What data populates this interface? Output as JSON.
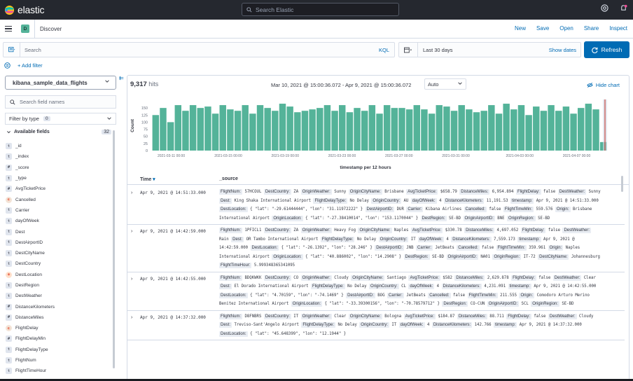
{
  "topbar": {
    "brand": "elastic",
    "search_placeholder": "Search Elastic"
  },
  "navbar": {
    "space_initial": "D",
    "breadcrumb": "Discover",
    "links": [
      "New",
      "Save",
      "Open",
      "Share",
      "Inspect"
    ]
  },
  "querybar": {
    "search_placeholder": "Search",
    "kql": "KQL",
    "date_range": "Last 30 days",
    "show_dates": "Show dates",
    "refresh": "Refresh"
  },
  "filter": {
    "add_filter": "+ Add filter"
  },
  "sidebar": {
    "index_pattern": "kibana_sample_data_flights",
    "search_placeholder": "Search field names",
    "filter_by_type": "Filter by type",
    "filter_count": "0",
    "available_fields": "Available fields",
    "available_count": "32",
    "fields": [
      {
        "type": "t",
        "name": "_id"
      },
      {
        "type": "t",
        "name": "_index"
      },
      {
        "type": "#",
        "name": "_score"
      },
      {
        "type": "t",
        "name": "_type"
      },
      {
        "type": "#",
        "name": "AvgTicketPrice"
      },
      {
        "type": "bool",
        "name": "Cancelled"
      },
      {
        "type": "t",
        "name": "Carrier"
      },
      {
        "type": "t",
        "name": "dayOfWeek"
      },
      {
        "type": "t",
        "name": "Dest"
      },
      {
        "type": "t",
        "name": "DestAirportID"
      },
      {
        "type": "t",
        "name": "DestCityName"
      },
      {
        "type": "t",
        "name": "DestCountry"
      },
      {
        "type": "geo",
        "name": "DestLocation"
      },
      {
        "type": "t",
        "name": "DestRegion"
      },
      {
        "type": "t",
        "name": "DestWeather"
      },
      {
        "type": "#",
        "name": "DistanceKilometers"
      },
      {
        "type": "#",
        "name": "DistanceMiles"
      },
      {
        "type": "bool",
        "name": "FlightDelay"
      },
      {
        "type": "#",
        "name": "FlightDelayMin"
      },
      {
        "type": "t",
        "name": "FlightDelayType"
      },
      {
        "type": "t",
        "name": "FlightNum"
      },
      {
        "type": "t",
        "name": "FlightTimeHour"
      }
    ]
  },
  "main": {
    "hits_count": "9,317",
    "hits_label": "hits",
    "date_range": "Mar 10, 2021 @ 15:00:36.072 - Apr 9, 2021 @ 15:00:36.072",
    "interval": "Auto",
    "hide_chart": "Hide chart",
    "col_time": "Time",
    "col_source": "_source"
  },
  "chart_data": {
    "type": "bar",
    "xlabel": "timestamp per 12 hours",
    "ylabel": "Count",
    "ylim": [
      0,
      175
    ],
    "yticks": [
      0,
      25,
      50,
      75,
      100,
      125,
      150
    ],
    "xtick_labels": [
      "2021-03-11 00:00",
      "2021-03-15 00:00",
      "2021-03-19 00:00",
      "2021-03-23 00:00",
      "2021-03-27 00:00",
      "2021-03-31 00:00",
      "2021-04-03 00:00",
      "2021-04-07 00:00"
    ],
    "values": [
      125,
      150,
      100,
      160,
      140,
      160,
      150,
      155,
      130,
      160,
      145,
      140,
      160,
      130,
      160,
      150,
      140,
      165,
      155,
      135,
      140,
      145,
      150,
      160,
      140,
      160,
      135,
      150,
      140,
      160,
      130,
      160,
      150,
      150,
      145,
      160,
      145,
      130,
      160,
      155,
      140,
      160,
      145,
      135,
      140,
      160,
      130,
      165,
      145,
      160,
      125,
      155,
      140,
      160,
      140,
      155,
      130,
      150,
      165,
      145,
      30
    ]
  },
  "rows": [
    {
      "time": "Apr 9, 2021 @ 14:51:33.000",
      "pairs": [
        [
          "FlightNum:",
          "57HCOUL"
        ],
        [
          "DestCountry:",
          "ZA"
        ],
        [
          "OriginWeather:",
          "Sunny"
        ],
        [
          "OriginCityName:",
          "Brisbane"
        ],
        [
          "AvgTicketPrice:",
          "$658.79"
        ],
        [
          "DistanceMiles:",
          "6,954.894"
        ],
        [
          "FlightDelay:",
          "false"
        ],
        [
          "DestWeather:",
          "Sunny"
        ],
        [
          "Dest:",
          "King Shaka International Airport"
        ],
        [
          "FlightDelayType:",
          "No Delay"
        ],
        [
          "OriginCountry:",
          "AU"
        ],
        [
          "dayOfWeek:",
          "4"
        ],
        [
          "DistanceKilometers:",
          "11,191.53"
        ],
        [
          "timestamp:",
          "Apr 9, 2021 @ 14:51:33.000"
        ],
        [
          "DestLocation:",
          "{ \"lat\": \"-29.61444444\", \"lon\": \"31.11972222\" }"
        ],
        [
          "DestAirportID:",
          "DUR"
        ],
        [
          "Carrier:",
          "Kibana Airlines"
        ],
        [
          "Cancelled:",
          "false"
        ],
        [
          "FlightTimeMin:",
          "559.576"
        ],
        [
          "Origin:",
          "Brisbane International Airport"
        ],
        [
          "OriginLocation:",
          "{ \"lat\": \"-27.38410014\", \"lon\": \"153.1170044\" }"
        ],
        [
          "DestRegion:",
          "SE-BD"
        ],
        [
          "OriginAirportID:",
          "BNE"
        ],
        [
          "OriginRegion:",
          "SE-BD"
        ]
      ]
    },
    {
      "time": "Apr 9, 2021 @ 14:42:59.000",
      "pairs": [
        [
          "FlightNum:",
          "1PFICL1"
        ],
        [
          "DestCountry:",
          "ZA"
        ],
        [
          "OriginWeather:",
          "Heavy Fog"
        ],
        [
          "OriginCityName:",
          "Naples"
        ],
        [
          "AvgTicketPrice:",
          "$330.78"
        ],
        [
          "DistanceMiles:",
          "4,697.052"
        ],
        [
          "FlightDelay:",
          "false"
        ],
        [
          "DestWeather:",
          "Rain"
        ],
        [
          "Dest:",
          "OR Tambo International Airport"
        ],
        [
          "FlightDelayType:",
          "No Delay"
        ],
        [
          "OriginCountry:",
          "IT"
        ],
        [
          "dayOfWeek:",
          "4"
        ],
        [
          "DistanceKilometers:",
          "7,559.173"
        ],
        [
          "timestamp:",
          "Apr 9, 2021 @ 14:42:59.000"
        ],
        [
          "DestLocation:",
          "{ \"lat\": \"-26.1392\", \"lon\": \"28.246\" }"
        ],
        [
          "DestAirportID:",
          "JNB"
        ],
        [
          "Carrier:",
          "JetBeats"
        ],
        [
          "Cancelled:",
          "false"
        ],
        [
          "FlightTimeMin:",
          "359.961"
        ],
        [
          "Origin:",
          "Naples International Airport"
        ],
        [
          "OriginLocation:",
          "{ \"lat\": \"40.886002\", \"lon\": \"14.2908\" }"
        ],
        [
          "DestRegion:",
          "SE-BD"
        ],
        [
          "OriginAirportID:",
          "NA01"
        ],
        [
          "OriginRegion:",
          "IT-72"
        ],
        [
          "DestCityName:",
          "Johannesburg"
        ],
        [
          "FlightTimeHour:",
          "5.999348365341095"
        ]
      ]
    },
    {
      "time": "Apr 9, 2021 @ 14:42:55.000",
      "pairs": [
        [
          "FlightNum:",
          "BDQKWKK"
        ],
        [
          "DestCountry:",
          "CO"
        ],
        [
          "OriginWeather:",
          "Cloudy"
        ],
        [
          "OriginCityName:",
          "Santiago"
        ],
        [
          "AvgTicketPrice:",
          "$582"
        ],
        [
          "DistanceMiles:",
          "2,629.878"
        ],
        [
          "FlightDelay:",
          "false"
        ],
        [
          "DestWeather:",
          "Clear"
        ],
        [
          "Dest:",
          "El Dorado International Airport"
        ],
        [
          "FlightDelayType:",
          "No Delay"
        ],
        [
          "OriginCountry:",
          "CL"
        ],
        [
          "dayOfWeek:",
          "4"
        ],
        [
          "DistanceKilometers:",
          "4,231.091"
        ],
        [
          "timestamp:",
          "Apr 9, 2021 @ 14:42:55.000"
        ],
        [
          "DestLocation:",
          "{ \"lat\": \"4.70159\", \"lon\": \"-74.1469\" }"
        ],
        [
          "DestAirportID:",
          "BOG"
        ],
        [
          "Carrier:",
          "JetBeats"
        ],
        [
          "Cancelled:",
          "false"
        ],
        [
          "FlightTimeMin:",
          "211.555"
        ],
        [
          "Origin:",
          "Comodoro Arturo Merino Benitez International Airport"
        ],
        [
          "OriginLocation:",
          "{ \"lat\": \"-33.39300156\", \"lon\": \"-70.78579712\" }"
        ],
        [
          "DestRegion:",
          "CO-CUN"
        ],
        [
          "OriginAirportID:",
          "SCL"
        ],
        [
          "OriginRegion:",
          "SE-BD"
        ]
      ]
    },
    {
      "time": "Apr 9, 2021 @ 14:37:32.000",
      "pairs": [
        [
          "FlightNum:",
          "D8FNBRS"
        ],
        [
          "DestCountry:",
          "IT"
        ],
        [
          "OriginWeather:",
          "Clear"
        ],
        [
          "OriginCityName:",
          "Bologna"
        ],
        [
          "AvgTicketPrice:",
          "$184.87"
        ],
        [
          "DistanceMiles:",
          "88.711"
        ],
        [
          "FlightDelay:",
          "false"
        ],
        [
          "DestWeather:",
          "Cloudy"
        ],
        [
          "Dest:",
          "Treviso-Sant'Angelo Airport"
        ],
        [
          "FlightDelayType:",
          "No Delay"
        ],
        [
          "OriginCountry:",
          "IT"
        ],
        [
          "dayOfWeek:",
          "4"
        ],
        [
          "DistanceKilometers:",
          "142.766"
        ],
        [
          "timestamp:",
          "Apr 9, 2021 @ 14:37:32.000"
        ],
        [
          "DestLocation:",
          "{ \"lat\": \"45.648399\", \"lon\": \"12.1944\" }"
        ]
      ]
    }
  ]
}
